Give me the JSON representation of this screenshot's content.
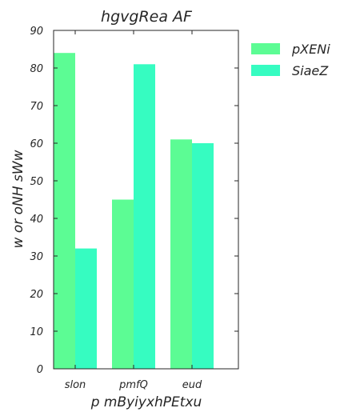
{
  "chart_data": {
    "type": "bar",
    "title": "hgvgRea AF",
    "xlabel": "p mByiyxhPEtxu",
    "ylabel": "w or oNH sWw",
    "categories": [
      "slon",
      "pmfQ",
      "eud"
    ],
    "series": [
      {
        "name": "pXENi",
        "values": [
          84,
          45,
          61
        ],
        "color": "#5cfc94"
      },
      {
        "name": "SiaeZ",
        "values": [
          32,
          81,
          60
        ],
        "color": "#36fcc1"
      }
    ],
    "ylim": [
      0,
      90
    ],
    "yticks": [
      0,
      10,
      20,
      30,
      40,
      50,
      60,
      70,
      80,
      90
    ],
    "grid": false,
    "legend_position": "outside-top-right"
  }
}
